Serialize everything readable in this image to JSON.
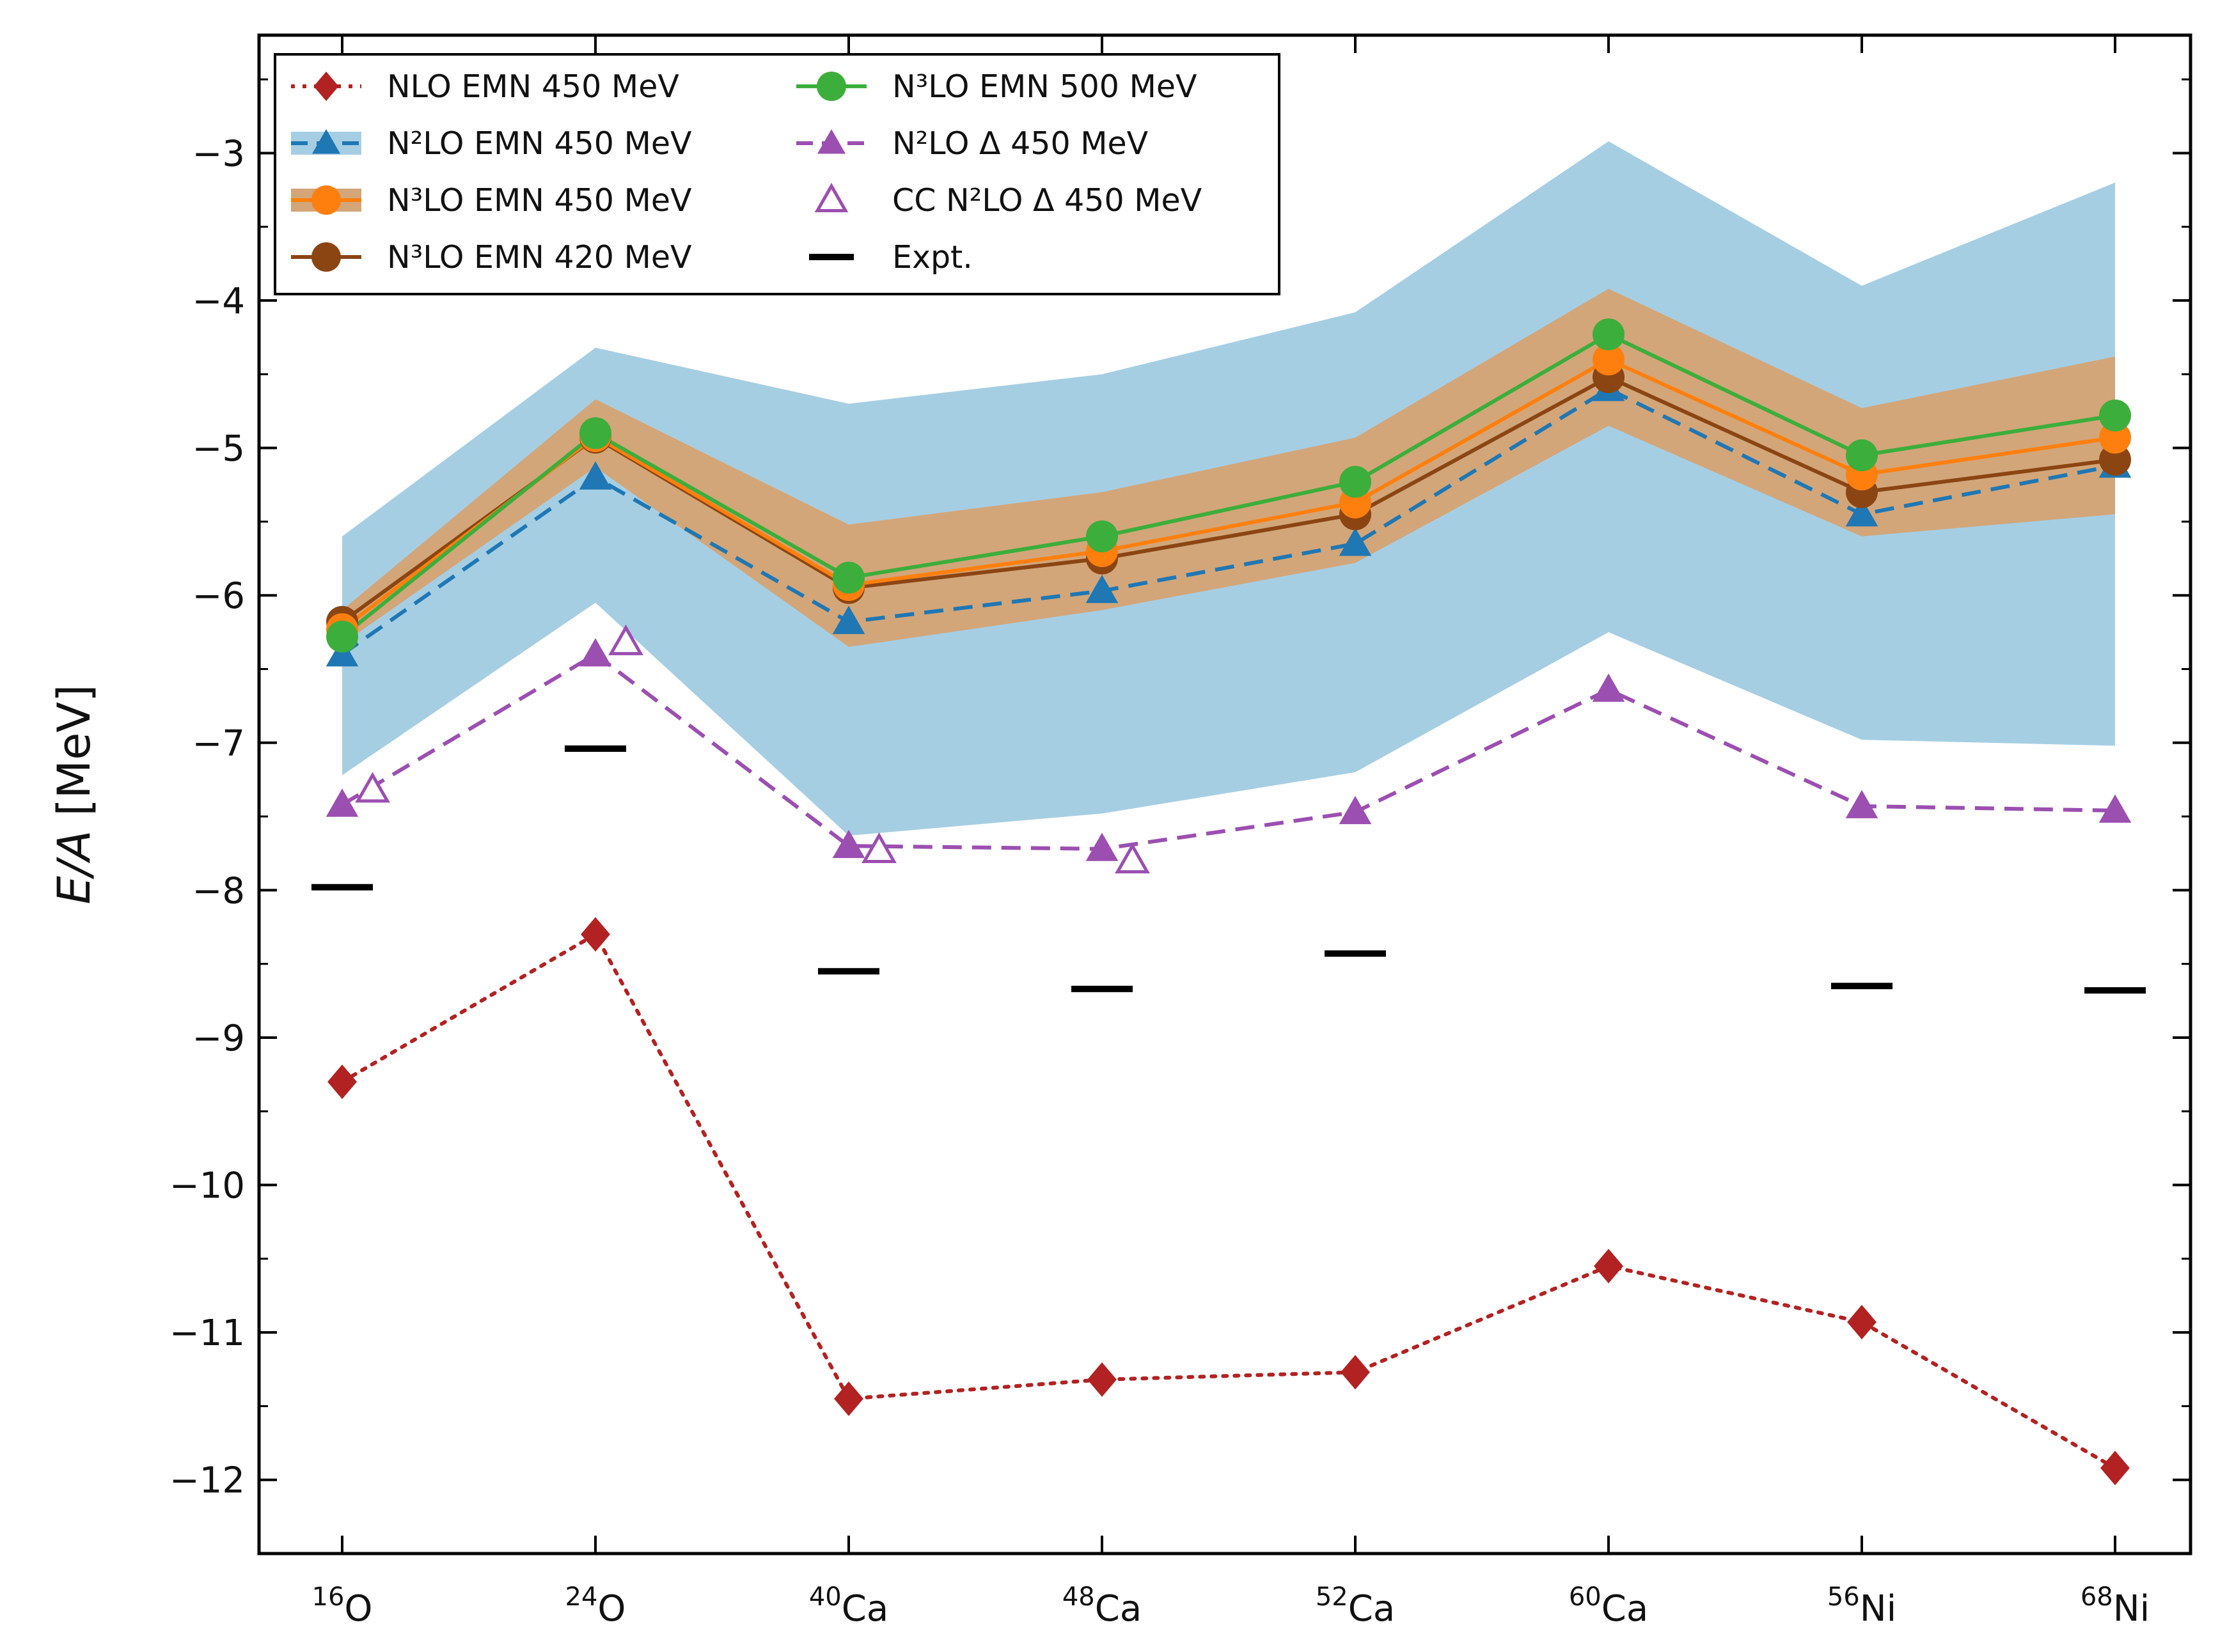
{
  "chart_data": {
    "type": "line",
    "ylabel_var": "E/A",
    "ylabel_unit": "[MeV]",
    "ylim": [
      -12.5,
      -2.2
    ],
    "yticks": [
      -3,
      -4,
      -5,
      -6,
      -7,
      -8,
      -9,
      -10,
      -11,
      -12
    ],
    "ytick_labels": [
      "−3",
      "−4",
      "−5",
      "−6",
      "−7",
      "−8",
      "−9",
      "−10",
      "−11",
      "−12"
    ],
    "categories": [
      {
        "mass": "16",
        "element": "O"
      },
      {
        "mass": "24",
        "element": "O"
      },
      {
        "mass": "40",
        "element": "Ca"
      },
      {
        "mass": "48",
        "element": "Ca"
      },
      {
        "mass": "52",
        "element": "Ca"
      },
      {
        "mass": "60",
        "element": "Ca"
      },
      {
        "mass": "56",
        "element": "Ni"
      },
      {
        "mass": "68",
        "element": "Ni"
      }
    ],
    "grid": false,
    "legend_position": "top-left",
    "series": [
      {
        "name": "NLO EMN 450 MeV",
        "color": "#b22222",
        "marker": "diamond",
        "line": "dotted",
        "values": [
          -9.3,
          -8.3,
          -11.45,
          -11.32,
          -11.27,
          -10.55,
          -10.93,
          -11.92
        ]
      },
      {
        "name": "N²LO EMN 450 MeV",
        "color": "#1f77b4",
        "marker": "triangle",
        "line": "dashed",
        "values": [
          -6.4,
          -5.2,
          -6.18,
          -5.97,
          -5.65,
          -4.6,
          -5.45,
          -5.12
        ],
        "band_upper": [
          -5.6,
          -4.32,
          -4.7,
          -4.5,
          -4.08,
          -2.92,
          -3.9,
          -3.2
        ],
        "band_lower": [
          -7.22,
          -6.05,
          -7.63,
          -7.48,
          -7.2,
          -6.25,
          -6.98,
          -7.02
        ],
        "band_color": "#a6cee3"
      },
      {
        "name": "N³LO EMN 450 MeV",
        "color": "#ff7f0e",
        "marker": "circle",
        "line": "solid",
        "values": [
          -6.23,
          -4.92,
          -5.93,
          -5.7,
          -5.37,
          -4.4,
          -5.18,
          -4.93
        ],
        "band_upper": [
          -6.1,
          -4.67,
          -5.52,
          -5.3,
          -4.93,
          -3.92,
          -4.73,
          -4.38
        ],
        "band_lower": [
          -6.33,
          -5.13,
          -6.35,
          -6.1,
          -5.78,
          -4.85,
          -5.6,
          -5.45
        ],
        "band_color": "#d2a679"
      },
      {
        "name": "N³LO EMN 420 MeV",
        "color": "#8b4513",
        "marker": "circle",
        "line": "solid",
        "values": [
          -6.18,
          -4.93,
          -5.95,
          -5.75,
          -5.45,
          -4.52,
          -5.3,
          -5.08
        ]
      },
      {
        "name": "N³LO EMN 500 MeV",
        "color": "#3cae3c",
        "marker": "circle",
        "line": "solid",
        "values": [
          -6.28,
          -4.9,
          -5.88,
          -5.6,
          -5.23,
          -4.23,
          -5.05,
          -4.78
        ]
      },
      {
        "name": "N²LO Δ 450 MeV",
        "color": "#9b4fb0",
        "marker": "triangle",
        "line": "dashed",
        "values": [
          -7.42,
          -6.4,
          -7.7,
          -7.72,
          -7.47,
          -6.64,
          -7.43,
          -7.46
        ]
      },
      {
        "name": "CC N²LO Δ 450 MeV",
        "color": "#9b4fb0",
        "marker": "open-triangle",
        "line": "none",
        "x_offset": 0.12,
        "points": [
          [
            0,
            -7.32
          ],
          [
            1,
            -6.32
          ],
          [
            2,
            -7.73
          ],
          [
            3,
            -7.8
          ]
        ]
      },
      {
        "name": "Expt.",
        "color": "#000000",
        "marker": "hline",
        "line": "none",
        "values": [
          -7.98,
          -7.04,
          -8.55,
          -8.67,
          -8.43,
          null,
          -8.65,
          -8.68
        ]
      }
    ],
    "legend_entries": [
      {
        "series": 0,
        "text": "NLO EMN 450 MeV"
      },
      {
        "series": 1,
        "text": "N²LO EMN 450 MeV"
      },
      {
        "series": 2,
        "text": "N³LO EMN 450 MeV"
      },
      {
        "series": 3,
        "text": "N³LO EMN 420 MeV"
      },
      {
        "series": 4,
        "text": "N³LO EMN 500 MeV"
      },
      {
        "series": 5,
        "text": "N²LO Δ 450 MeV"
      },
      {
        "series": 6,
        "text": "CC N²LO Δ 450 MeV"
      },
      {
        "series": 7,
        "text": "Expt."
      }
    ]
  }
}
